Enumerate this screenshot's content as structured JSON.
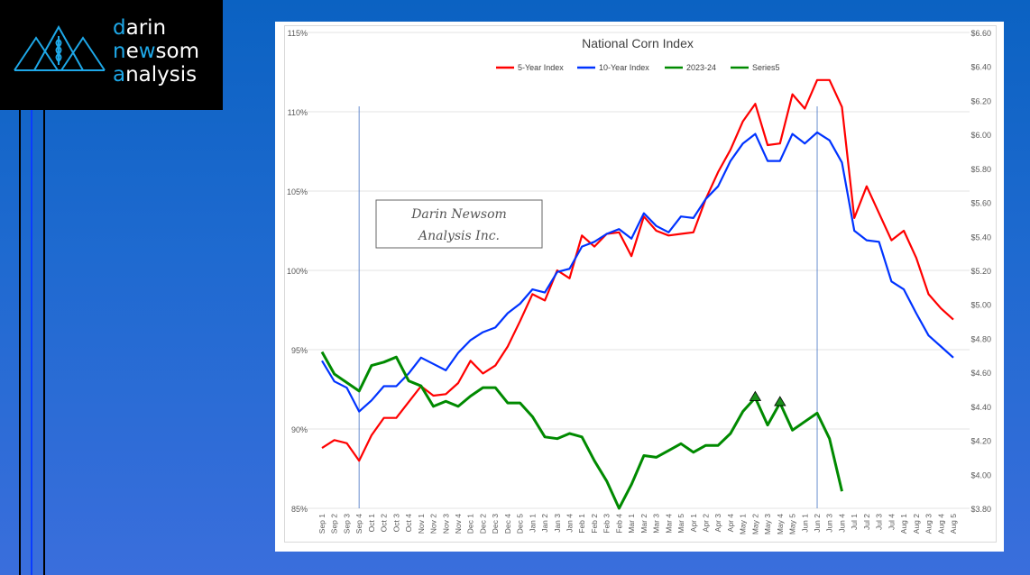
{
  "logo": {
    "line1_hl": "d",
    "line1": "arin",
    "line2_a": "n",
    "line2_b": "e",
    "line2_hl": "w",
    "line2_c": "som",
    "line3_hl": "a",
    "line3": "nalysis"
  },
  "watermark": {
    "line1": "Darin Newsom",
    "line2": "Analysis Inc."
  },
  "chart_data": {
    "type": "line",
    "title": "National Corn Index",
    "legend_position": "top-center",
    "categories": [
      "Sep 1",
      "Sep 2",
      "Sep 3",
      "Sep 4",
      "Oct 1",
      "Oct 2",
      "Oct 3",
      "Oct 4",
      "Nov 1",
      "Nov 2",
      "Nov 3",
      "Nov 4",
      "Dec 1",
      "Dec 2",
      "Dec 3",
      "Dec 4",
      "Dec 5",
      "Jan 1",
      "Jan 2",
      "Jan 3",
      "Jan 4",
      "Feb 1",
      "Feb 2",
      "Feb 3",
      "Feb 4",
      "Mar 1",
      "Mar 2",
      "Mar 3",
      "Mar 4",
      "Mar 5",
      "Apr 1",
      "Apr 2",
      "Apr 3",
      "Apr 4",
      "May 1",
      "May 2",
      "May 3",
      "May 4",
      "May 5",
      "Jun 1",
      "Jun 2",
      "Jun 3",
      "Jun 4",
      "Jul 1",
      "Jul 2",
      "Jul 3",
      "Jul 4",
      "Aug 1",
      "Aug 2",
      "Aug 3",
      "Aug 4",
      "Aug 5"
    ],
    "y_left": {
      "min": 85,
      "max": 115,
      "step": 5,
      "ticks": [
        "85%",
        "90%",
        "95%",
        "100%",
        "105%",
        "110%",
        "115%"
      ]
    },
    "y_right": {
      "min": 3.8,
      "max": 6.6,
      "step": 0.2,
      "ticks": [
        "$3.80",
        "$4.00",
        "$4.20",
        "$4.40",
        "$4.60",
        "$4.80",
        "$5.00",
        "$5.20",
        "$5.40",
        "$5.60",
        "$5.80",
        "$6.00",
        "$6.20",
        "$6.40",
        "$6.60"
      ]
    },
    "grid": true,
    "vertical_markers": [
      "Sep 4",
      "Jun 2"
    ],
    "series": [
      {
        "name": "5-Year Index",
        "axis": "left",
        "color": "#ff0000",
        "values": [
          88.8,
          89.3,
          89.1,
          88.0,
          89.6,
          90.7,
          90.7,
          91.7,
          92.7,
          92.1,
          92.2,
          92.9,
          94.3,
          93.5,
          94.0,
          95.2,
          96.8,
          98.5,
          98.1,
          100.0,
          99.5,
          102.2,
          101.5,
          102.3,
          102.4,
          100.9,
          103.4,
          102.5,
          102.2,
          102.3,
          102.4,
          104.5,
          106.2,
          107.6,
          109.4,
          110.5,
          107.9,
          108.0,
          111.1,
          110.2,
          112.0,
          112.0,
          110.3,
          103.3,
          105.3,
          103.6,
          101.9,
          102.5,
          100.8,
          98.5,
          97.6,
          96.9
        ]
      },
      {
        "name": "10-Year Index",
        "axis": "left",
        "color": "#0033ff",
        "values": [
          94.3,
          93.0,
          92.6,
          91.1,
          91.8,
          92.7,
          92.7,
          93.5,
          94.5,
          94.1,
          93.7,
          94.8,
          95.6,
          96.1,
          96.4,
          97.3,
          97.9,
          98.8,
          98.6,
          99.9,
          100.1,
          101.5,
          101.8,
          102.3,
          102.6,
          102.0,
          103.6,
          102.8,
          102.4,
          103.4,
          103.3,
          104.5,
          105.3,
          106.9,
          108.0,
          108.6,
          106.9,
          106.9,
          108.6,
          108.0,
          108.7,
          108.2,
          106.8,
          102.5,
          101.9,
          101.8,
          99.3,
          98.8,
          97.3,
          95.9,
          95.2,
          94.5
        ]
      },
      {
        "name": "2023-24",
        "axis": "right",
        "color": "#008a00",
        "values": [
          4.72,
          4.59,
          4.54,
          4.49,
          4.64,
          4.66,
          4.69,
          4.55,
          4.52,
          4.4,
          4.43,
          4.4,
          4.46,
          4.51,
          4.51,
          4.42,
          4.42,
          4.34,
          4.22,
          4.21,
          4.24,
          4.22,
          4.08,
          3.96,
          3.8,
          3.94,
          4.11,
          4.1,
          4.14,
          4.18,
          4.13,
          4.17,
          4.17,
          4.24,
          4.37,
          4.45,
          4.29,
          4.42,
          4.26,
          4.31,
          4.36,
          4.21,
          3.9,
          null,
          null,
          null,
          null,
          null,
          null,
          null,
          null,
          null
        ]
      },
      {
        "name": "Series5",
        "axis": "right",
        "color": "#008a00",
        "marker": "triangle",
        "values": [
          null,
          null,
          null,
          null,
          null,
          null,
          null,
          null,
          null,
          null,
          null,
          null,
          null,
          null,
          null,
          null,
          null,
          null,
          null,
          null,
          null,
          null,
          null,
          null,
          null,
          null,
          null,
          null,
          null,
          null,
          null,
          null,
          null,
          null,
          null,
          4.45,
          null,
          4.42,
          null,
          null,
          null,
          null,
          null,
          null,
          null,
          null,
          null,
          null,
          null,
          null,
          null,
          null
        ]
      }
    ]
  }
}
